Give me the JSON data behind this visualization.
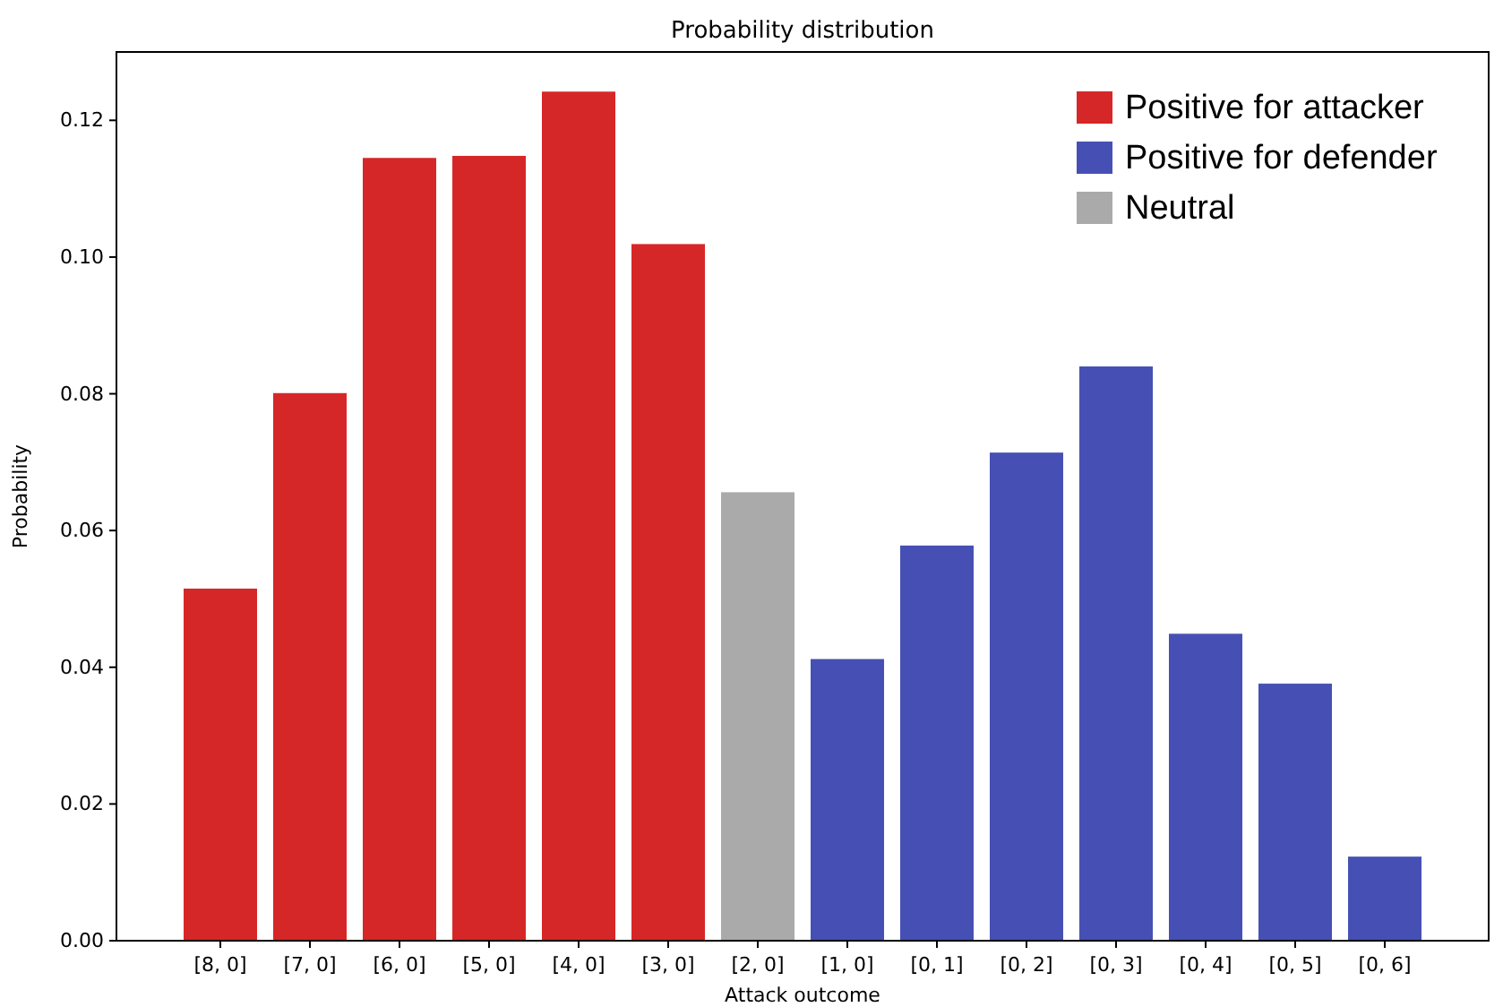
{
  "chart_data": {
    "type": "bar",
    "title": "Probability distribution",
    "xlabel": "Attack outcome",
    "ylabel": "Probability",
    "categories": [
      "[8, 0]",
      "[7, 0]",
      "[6, 0]",
      "[5, 0]",
      "[4, 0]",
      "[3, 0]",
      "[2, 0]",
      "[1, 0]",
      "[0, 1]",
      "[0, 2]",
      "[0, 3]",
      "[0, 4]",
      "[0, 5]",
      "[0, 6]"
    ],
    "stacked": true,
    "series": [
      {
        "name": "Positive for attacker",
        "color": "#d62728",
        "values": [
          0.0515,
          0.0801,
          0.1145,
          0.1148,
          0.1242,
          0.1019,
          null,
          null,
          null,
          null,
          null,
          null,
          null,
          null
        ]
      },
      {
        "name": "Positive for defender",
        "color": "#4650b4",
        "values": [
          null,
          null,
          null,
          null,
          null,
          null,
          null,
          0.0412,
          0.0578,
          0.0714,
          0.084,
          0.0449,
          0.0376,
          0.0123
        ]
      },
      {
        "name": "Neutral",
        "color": "#aaaaaa",
        "values": [
          null,
          null,
          null,
          null,
          null,
          null,
          0.0656,
          null,
          null,
          null,
          null,
          null,
          null,
          null
        ]
      }
    ],
    "ylim": [
      0,
      0.13
    ],
    "yticks": [
      {
        "value": 0,
        "label": "0.00"
      },
      {
        "value": 0.02,
        "label": "0.02"
      },
      {
        "value": 0.04,
        "label": "0.04"
      },
      {
        "value": 0.06,
        "label": "0.06"
      },
      {
        "value": 0.08,
        "label": "0.08"
      },
      {
        "value": 0.1,
        "label": "0.10"
      },
      {
        "value": 0.12,
        "label": "0.12"
      }
    ],
    "grid": false,
    "legend": "top right"
  }
}
